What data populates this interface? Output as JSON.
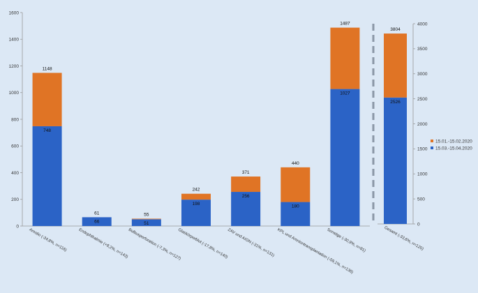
{
  "chart_data": [
    {
      "type": "bar",
      "stacked": true,
      "categories": [
        "Amotio (-34,8%, n=116)",
        "Endophthalmie (+8,2%, n=143)",
        "Bulbusperforation (-7,3%, n=127)",
        "Glaskörperblut (-17,8%, n=140)",
        "ZAV und AION (-31%, n=131)",
        "KPL und Amniontransplantation (-59,1%, n=136)",
        "Sonstige (-30,9%, n=81)"
      ],
      "series": [
        {
          "name": "15.03.-15.04.2020",
          "color": "#2b63c6",
          "values": [
            748,
            66,
            51,
            198,
            256,
            180,
            1027
          ]
        },
        {
          "name": "15.01.-15.02.2020",
          "color": "#e07425",
          "values": [
            400,
            -5,
            4,
            44,
            115,
            260,
            460
          ]
        }
      ],
      "totals": [
        1148,
        61,
        55,
        242,
        371,
        440,
        1487
      ],
      "ylim": [
        0,
        1600
      ],
      "yticks": [
        0,
        200,
        400,
        600,
        800,
        1000,
        1200,
        1400,
        1600
      ]
    },
    {
      "type": "bar",
      "stacked": true,
      "categories": [
        "Gesamt (-33,6%, n=120)"
      ],
      "series": [
        {
          "name": "15.03.-15.04.2020",
          "color": "#2b63c6",
          "values": [
            2526
          ]
        },
        {
          "name": "15.01.-15.02.2020",
          "color": "#e07425",
          "values": [
            1278
          ]
        }
      ],
      "totals": [
        3804
      ],
      "ylim": [
        0,
        4000
      ],
      "yticks": [
        0,
        500,
        1000,
        1500,
        2000,
        2500,
        3000,
        3500,
        4000
      ]
    }
  ],
  "legend": [
    {
      "label": "15.01.-15.02.2020",
      "color": "#e07425"
    },
    {
      "label": "15.03.-15.04.2020",
      "color": "#2b63c6"
    }
  ]
}
